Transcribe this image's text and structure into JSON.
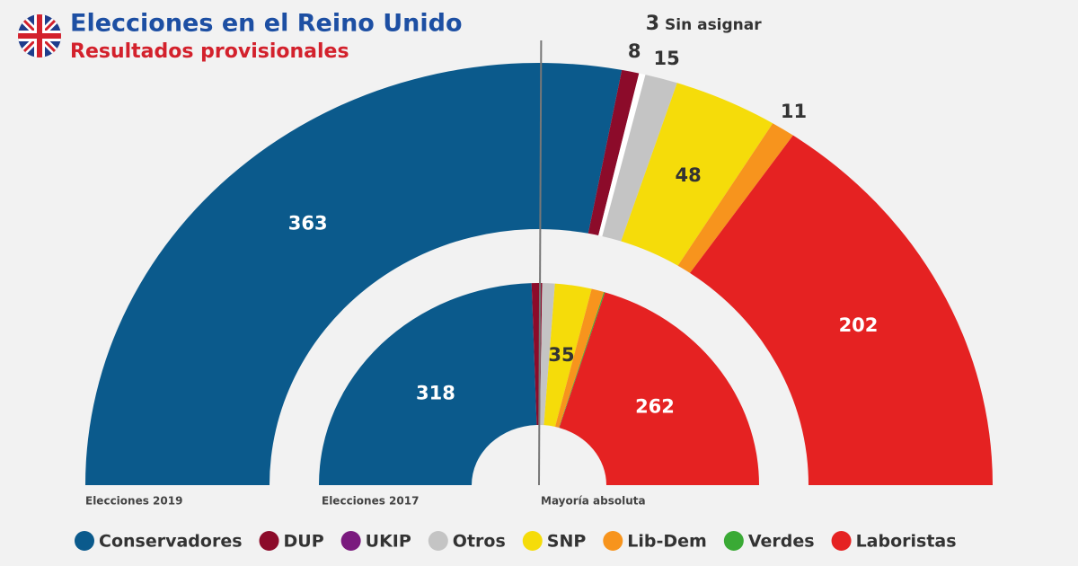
{
  "chart_data": {
    "type": "semicircle-donut",
    "title": "Elecciones en el Reino Unido",
    "subtitle": "Resultados provisionales",
    "rings": [
      "Elecciones 2019",
      "Elecciones 2017"
    ],
    "series": [
      {
        "name": "Conservadores",
        "color": "#0b5a8c",
        "values": [
          363,
          318
        ]
      },
      {
        "name": "DUP",
        "color": "#8c0b2a",
        "values": [
          8,
          10
        ]
      },
      {
        "name": "UKIP",
        "color": "#7a1a7e",
        "values": [
          0,
          0
        ]
      },
      {
        "name": "Otros",
        "color": "#c4c4c4",
        "values": [
          15,
          12
        ]
      },
      {
        "name": "SNP",
        "color": "#f5dc0a",
        "values": [
          48,
          35
        ]
      },
      {
        "name": "Lib-Dem",
        "color": "#f7941d",
        "values": [
          11,
          12
        ]
      },
      {
        "name": "Verdes",
        "color": "#3aaa35",
        "values": [
          0,
          1
        ]
      },
      {
        "name": "Laboristas",
        "color": "#e52222",
        "values": [
          202,
          262
        ]
      }
    ],
    "unassigned": {
      "label": "Sin asignar",
      "value": 3,
      "color": "#ffffff"
    },
    "majority": {
      "label": "Mayoría absoluta",
      "value": 326
    }
  }
}
